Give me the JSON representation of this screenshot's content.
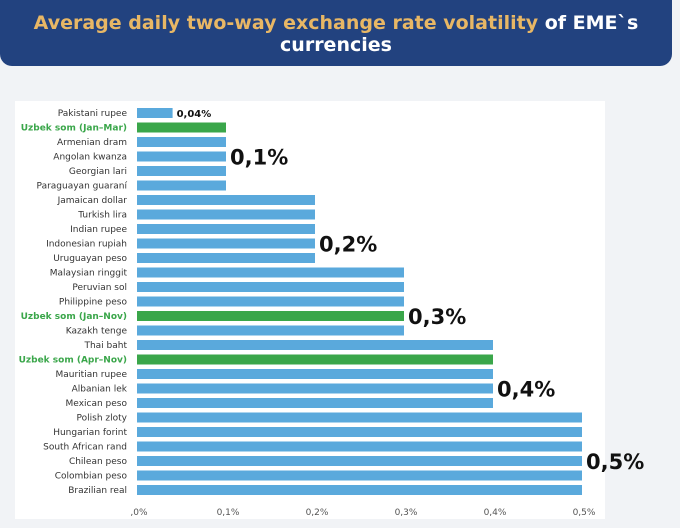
{
  "header": {
    "title_highlight": "Average daily two-way exchange rate volatility",
    "title_rest": " of EME`s currencies"
  },
  "chart_data": {
    "type": "bar",
    "orientation": "horizontal",
    "title": "Average daily two-way exchange rate volatility of EME`s currencies",
    "categories": [
      "Pakistani rupee",
      "Uzbek som (Jan–Mar)",
      "Armenian dram",
      "Angolan kwanza",
      "Georgian lari",
      "Paraguayan guaraní",
      "Jamaican dollar",
      "Turkish lira",
      "Indian rupee",
      "Indonesian rupiah",
      "Uruguayan peso",
      "Malaysian ringgit",
      "Peruvian sol",
      "Philippine peso",
      "Uzbek som (Jan–Nov)",
      "Kazakh tenge",
      "Thai baht",
      "Uzbek som (Apr–Nov)",
      "Mauritian rupee",
      "Albanian lek",
      "Mexican peso",
      "Polish zloty",
      "Hungarian forint",
      "South African rand",
      "Chilean peso",
      "Colombian peso",
      "Brazilian real"
    ],
    "values": [
      0.04,
      0.1,
      0.1,
      0.1,
      0.1,
      0.1,
      0.2,
      0.2,
      0.2,
      0.2,
      0.2,
      0.3,
      0.3,
      0.3,
      0.3,
      0.3,
      0.4,
      0.4,
      0.4,
      0.4,
      0.4,
      0.5,
      0.5,
      0.5,
      0.5,
      0.5,
      0.5
    ],
    "highlighted": [
      "Uzbek som (Jan–Mar)",
      "Uzbek som (Jan–Nov)",
      "Uzbek som (Apr–Nov)"
    ],
    "xlim": [
      0,
      0.5
    ],
    "xticks": [
      ",0%",
      "0,1%",
      "0,2%",
      "0,3%",
      "0,4%",
      "0,5%"
    ],
    "annotations": [
      {
        "text": "0,04%",
        "row": 0
      },
      {
        "text": "0,1%",
        "row": 3
      },
      {
        "text": "0,2%",
        "row": 9
      },
      {
        "text": "0,3%",
        "row": 14
      },
      {
        "text": "0,4%",
        "row": 19
      },
      {
        "text": "0,5%",
        "row": 24
      }
    ],
    "colors": {
      "bar": "#5aa9dc",
      "highlight": "#3aa64a"
    }
  }
}
